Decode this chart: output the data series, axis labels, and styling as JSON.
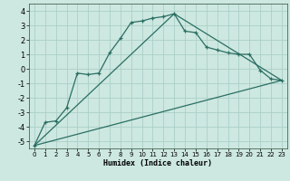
{
  "xlabel": "Humidex (Indice chaleur)",
  "ylabel": "",
  "bg_color": "#cde8e0",
  "line_color": "#2a6e63",
  "grid_color": "#aacfc8",
  "ylim": [
    -5.5,
    4.5
  ],
  "xlim": [
    -0.5,
    23.5
  ],
  "x_ticks": [
    0,
    1,
    2,
    3,
    4,
    5,
    6,
    7,
    8,
    9,
    10,
    11,
    12,
    13,
    14,
    15,
    16,
    17,
    18,
    19,
    20,
    21,
    22,
    23
  ],
  "y_ticks": [
    -5,
    -4,
    -3,
    -2,
    -1,
    0,
    1,
    2,
    3,
    4
  ],
  "line1_x": [
    0,
    1,
    2,
    3,
    4,
    5,
    6,
    7,
    8,
    9,
    10,
    11,
    12,
    13,
    14,
    15,
    16,
    17,
    18,
    19,
    20,
    21,
    22,
    23
  ],
  "line1_y": [
    -5.3,
    -3.7,
    -3.6,
    -2.7,
    -0.3,
    -0.4,
    -0.3,
    1.1,
    2.1,
    3.2,
    3.3,
    3.5,
    3.6,
    3.8,
    2.6,
    2.5,
    1.5,
    1.3,
    1.1,
    1.0,
    1.0,
    -0.1,
    -0.7,
    -0.8
  ],
  "line2_x": [
    0,
    13,
    23
  ],
  "line2_y": [
    -5.3,
    3.8,
    -0.8
  ],
  "line3_x": [
    0,
    13,
    23
  ],
  "line3_y": [
    -5.3,
    3.8,
    -0.8
  ],
  "ref_line1_x": [
    0,
    23
  ],
  "ref_line1_y": [
    -5.3,
    -0.8
  ],
  "ref_line2_x": [
    0,
    13,
    23
  ],
  "ref_line2_y": [
    -4.5,
    3.8,
    -0.8
  ]
}
